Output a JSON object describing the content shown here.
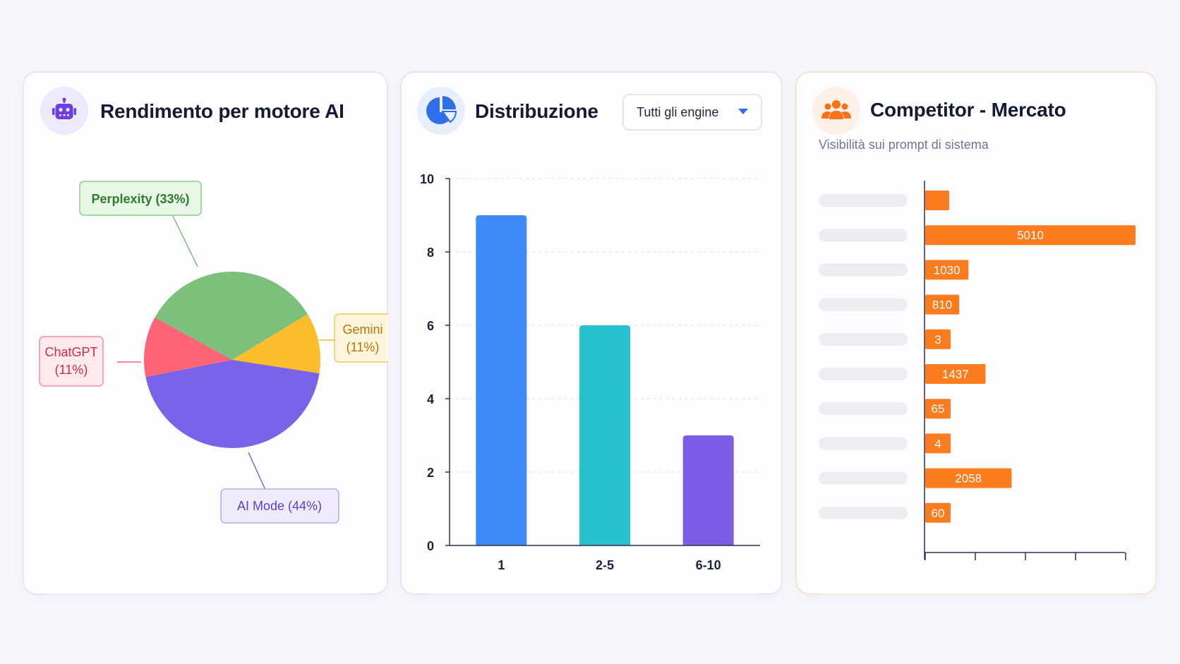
{
  "cards": {
    "engine_performance": {
      "title": "Rendimento per motore AI",
      "icon": "robot-icon"
    },
    "distribution": {
      "title": "Distribuzione",
      "icon": "pie-chart-icon",
      "dropdown": {
        "selected": "Tutti gli engine",
        "icon": "chevron-down-icon"
      }
    },
    "competitors": {
      "title": "Competitor - Mercato",
      "subtitle": "Visibilità sui prompt di sistema",
      "icon": "users-icon"
    }
  },
  "colors": {
    "perplexity": "#7cc07c",
    "gemini": "#fbbd2c",
    "ai_mode": "#7a63e8",
    "chatgpt": "#fd6478",
    "bar_1": "#3e8af7",
    "bar_2_5": "#28c2cf",
    "bar_6_10": "#7c5ce5",
    "competitor_bar": "#fb7c1e",
    "accent_blue": "#2f6fe8",
    "accent_orange": "#f97316",
    "accent_purple": "#6d3fe0"
  },
  "chart_data": [
    {
      "type": "pie",
      "slices": [
        {
          "label": "Perplexity",
          "pct_label": "(33%)",
          "value": 33,
          "color": "#7cc07c"
        },
        {
          "label": "Gemini",
          "pct_label": "(11%)",
          "value": 11,
          "color": "#fbbd2c"
        },
        {
          "label": "AI Mode",
          "pct_label": "(44%)",
          "value": 44,
          "color": "#7a63e8"
        },
        {
          "label": "ChatGPT",
          "pct_label": "(11%)",
          "value": 11,
          "color": "#fd6478"
        }
      ]
    },
    {
      "type": "bar",
      "categories": [
        "1",
        "2-5",
        "6-10"
      ],
      "values": [
        9,
        6,
        3
      ],
      "colors": [
        "#3e8af7",
        "#28c2cf",
        "#7c5ce5"
      ],
      "ylim": [
        0,
        10
      ],
      "yticks": [
        0,
        2,
        4,
        6,
        8,
        10
      ],
      "grid": true
    },
    {
      "type": "bar",
      "orientation": "horizontal",
      "categories": [
        "",
        "",
        "",
        "",
        "",
        "",
        "",
        "",
        "",
        ""
      ],
      "values": [
        null,
        5010,
        1030,
        810,
        3,
        1437,
        65,
        4,
        2058,
        60
      ],
      "value_labels": [
        "",
        "5010",
        "1030",
        "810",
        "3",
        "1437",
        "65",
        "4",
        "2058",
        "60"
      ],
      "color": "#fb7c1e"
    }
  ]
}
